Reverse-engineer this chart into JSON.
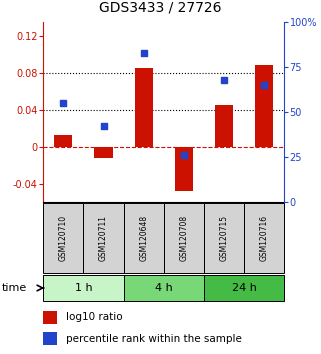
{
  "title": "GDS3433 / 27726",
  "samples": [
    "GSM120710",
    "GSM120711",
    "GSM120648",
    "GSM120708",
    "GSM120715",
    "GSM120716"
  ],
  "log10_ratio": [
    0.013,
    -0.012,
    0.085,
    -0.048,
    0.045,
    0.088
  ],
  "percentile_rank": [
    55,
    42,
    83,
    26,
    68,
    65
  ],
  "time_groups": [
    {
      "label": "1 h",
      "indices": [
        0,
        1
      ],
      "color": "#c8f5c8"
    },
    {
      "label": "4 h",
      "indices": [
        2,
        3
      ],
      "color": "#78d878"
    },
    {
      "label": "24 h",
      "indices": [
        4,
        5
      ],
      "color": "#44bb44"
    }
  ],
  "bar_color": "#cc1100",
  "dot_color": "#2244cc",
  "ylim_left": [
    -0.06,
    0.135
  ],
  "ylim_right": [
    0,
    100
  ],
  "yticks_left": [
    -0.04,
    0.0,
    0.04,
    0.08,
    0.12
  ],
  "yticks_right": [
    0,
    25,
    50,
    75,
    100
  ],
  "bg_color": "#ffffff",
  "plot_bg": "#ffffff",
  "time_label": "time",
  "legend_bar_label": "log10 ratio",
  "legend_dot_label": "percentile rank within the sample",
  "title_fontsize": 10,
  "axis_fontsize": 7,
  "legend_fontsize": 7.5,
  "time_fontsize": 8,
  "sample_fontsize": 5.5
}
